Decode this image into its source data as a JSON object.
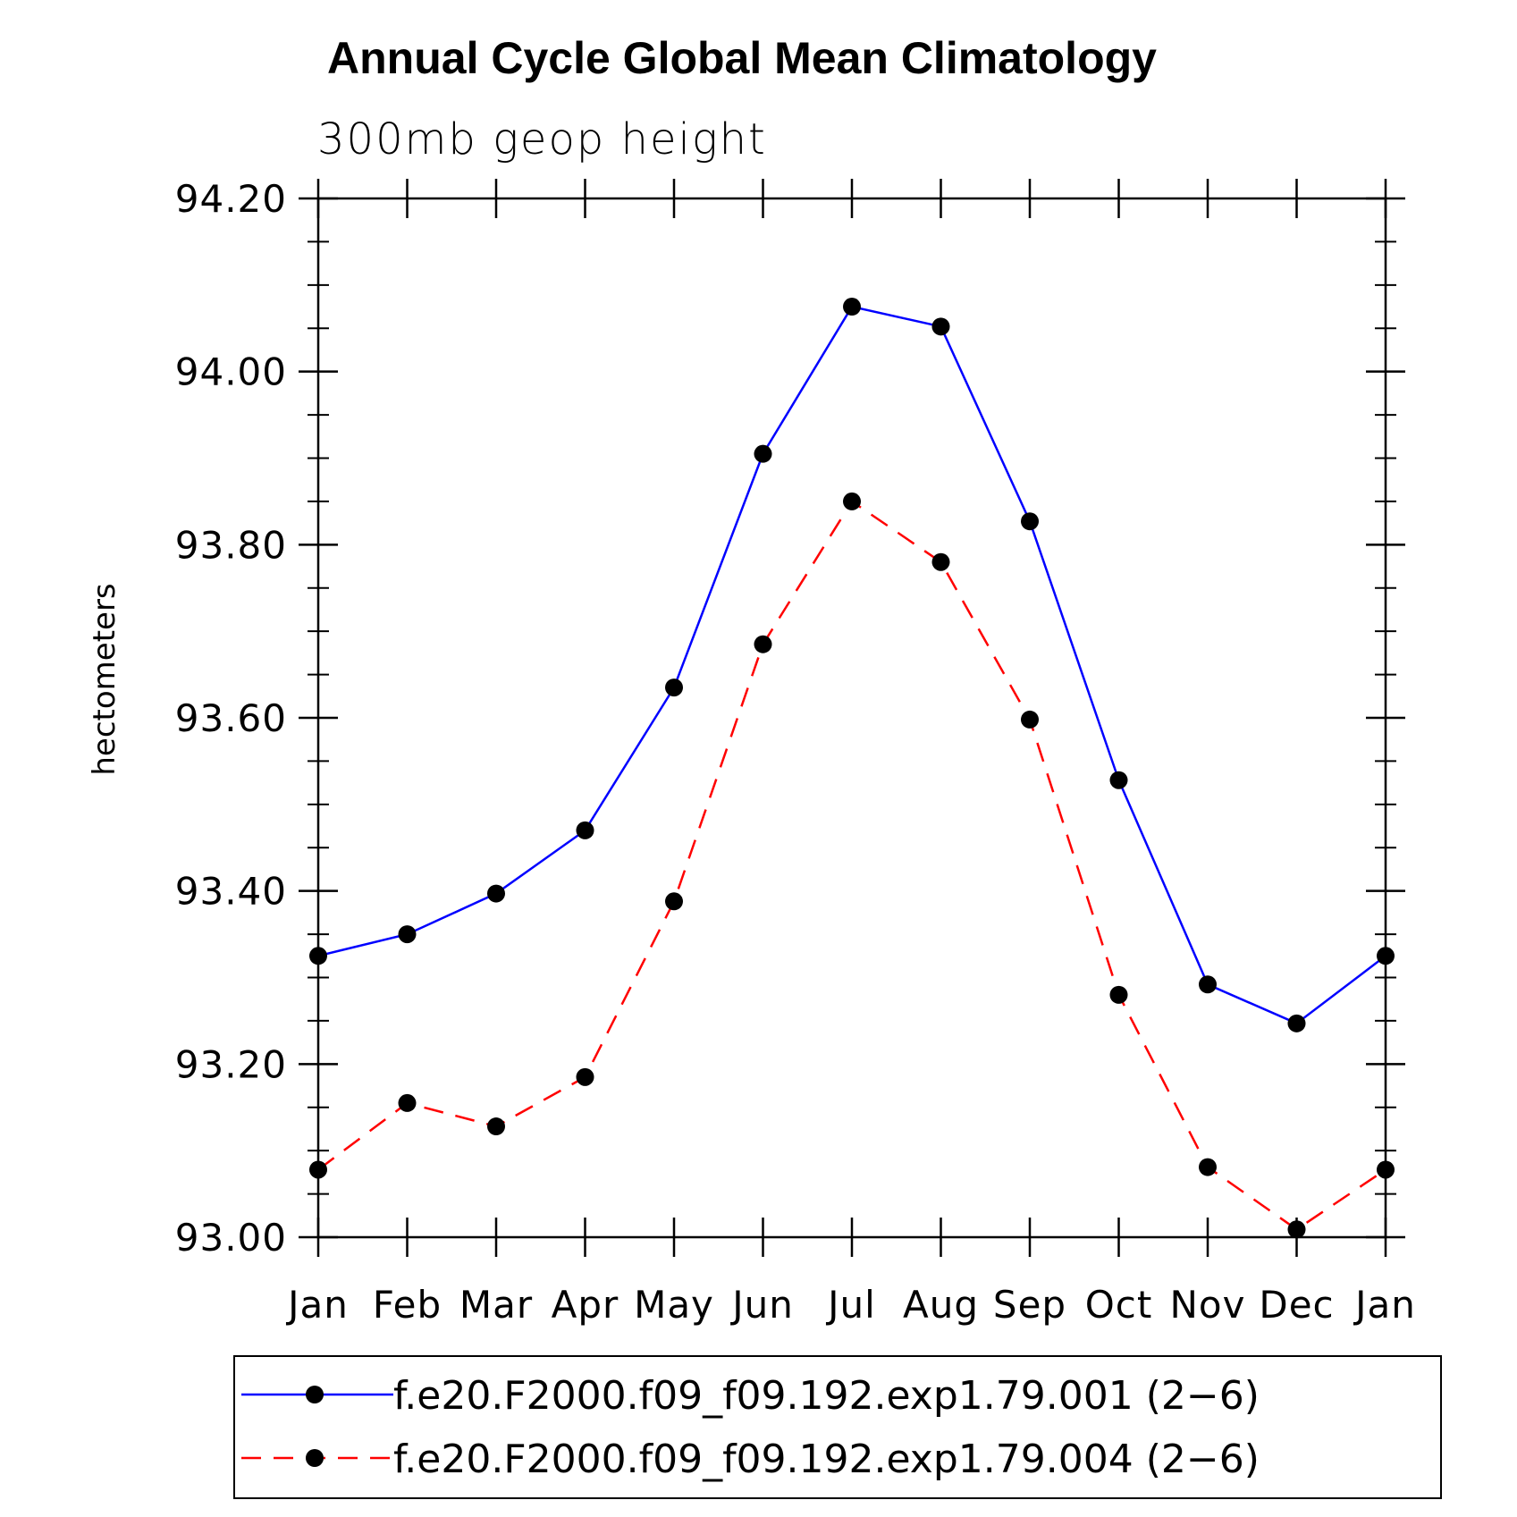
{
  "chart_data": {
    "type": "line",
    "title": "Annual Cycle Global Mean Climatology",
    "subtitle": "300mb geop height",
    "ylabel": "hectometers",
    "xlabel": "",
    "categories": [
      "Jan",
      "Feb",
      "Mar",
      "Apr",
      "May",
      "Jun",
      "Jul",
      "Aug",
      "Sep",
      "Oct",
      "Nov",
      "Dec",
      "Jan"
    ],
    "ylim": [
      93.0,
      94.2
    ],
    "yticks": [
      "93.00",
      "93.20",
      "93.40",
      "93.60",
      "93.80",
      "94.00",
      "94.20"
    ],
    "ytick_values": [
      93.0,
      93.2,
      93.4,
      93.6,
      93.8,
      94.0,
      94.2
    ],
    "y_minor_step": 0.05,
    "series": [
      {
        "name": "f.e20.F2000.f09_f09.192.exp1.79.001 (2−6)",
        "color": "#0000ff",
        "style": "solid",
        "marker_color": "#000000",
        "values": [
          93.325,
          93.35,
          93.397,
          93.47,
          93.635,
          93.905,
          94.075,
          94.052,
          93.827,
          93.528,
          93.292,
          93.247,
          93.325
        ]
      },
      {
        "name": "f.e20.F2000.f09_f09.192.exp1.79.004 (2−6)",
        "color": "#ff0000",
        "style": "dashed",
        "marker_color": "#000000",
        "values": [
          93.078,
          93.155,
          93.128,
          93.185,
          93.388,
          93.685,
          93.85,
          93.78,
          93.598,
          93.28,
          93.081,
          93.009,
          93.078
        ]
      }
    ],
    "legend_position": "bottom"
  }
}
